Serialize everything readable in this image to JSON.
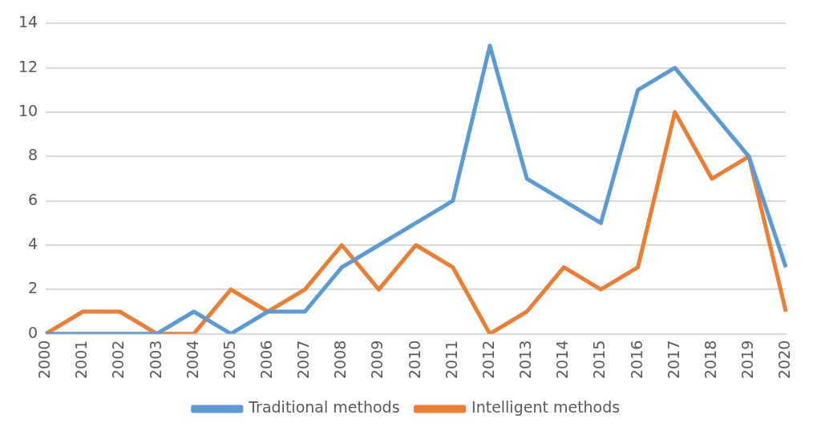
{
  "chart_data": {
    "type": "line",
    "categories": [
      "2000",
      "2001",
      "2002",
      "2003",
      "2004",
      "2005",
      "2006",
      "2007",
      "2008",
      "2009",
      "2010",
      "2011",
      "2012",
      "2013",
      "2014",
      "2015",
      "2016",
      "2017",
      "2018",
      "2019",
      "2020"
    ],
    "series": [
      {
        "name": "Traditional methods",
        "color": "#5b9bd5",
        "values": [
          0,
          0,
          0,
          0,
          1,
          0,
          1,
          1,
          3,
          4,
          5,
          6,
          13,
          7,
          6,
          5,
          11,
          12,
          10,
          8,
          3
        ]
      },
      {
        "name": "Intelligent methods",
        "color": "#ed7d31",
        "values": [
          0,
          1,
          1,
          0,
          0,
          2,
          1,
          2,
          4,
          2,
          4,
          3,
          0,
          1,
          3,
          2,
          3,
          10,
          7,
          8,
          1
        ]
      }
    ],
    "ylim": [
      0,
      14
    ],
    "yticks": [
      0,
      2,
      4,
      6,
      8,
      10,
      12,
      14
    ],
    "grid": "y",
    "legend": "bottom",
    "marker": "none",
    "line_style": "solid"
  }
}
